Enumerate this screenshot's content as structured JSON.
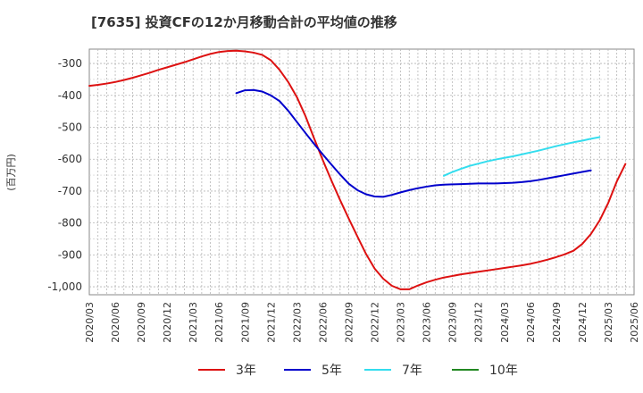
{
  "chart_data": {
    "type": "line",
    "title": "[7635]  投資CFの12か月移動合計の平均値の推移",
    "ylabel": "(百万円)",
    "xlabel": "",
    "ylim": [
      -1025,
      -255
    ],
    "yticks": [
      -300,
      -400,
      -500,
      -600,
      -700,
      -800,
      -900,
      -1000
    ],
    "ytick_labels": [
      "-300",
      "-400",
      "-500",
      "-600",
      "-700",
      "-800",
      "-900",
      "-1,000"
    ],
    "xticks": [
      "2020/03",
      "2020/06",
      "2020/09",
      "2020/12",
      "2021/03",
      "2021/06",
      "2021/09",
      "2021/12",
      "2022/03",
      "2022/06",
      "2022/09",
      "2022/12",
      "2023/03",
      "2023/06",
      "2023/09",
      "2023/12",
      "2024/03",
      "2024/06",
      "2024/09",
      "2024/12",
      "2025/03",
      "2025/06"
    ],
    "grid": true,
    "legend_position": "bottom",
    "series": [
      {
        "name": "3年",
        "color": "#dd1111",
        "start": "2020/03",
        "values": [
          -370,
          -367,
          -363,
          -358,
          -352,
          -345,
          -337,
          -329,
          -320,
          -312,
          -304,
          -296,
          -287,
          -278,
          -270,
          -264,
          -261,
          -260,
          -262,
          -266,
          -273,
          -290,
          -320,
          -358,
          -405,
          -465,
          -535,
          -603,
          -667,
          -728,
          -786,
          -842,
          -897,
          -943,
          -975,
          -997,
          -1008,
          -1008,
          -996,
          -986,
          -978,
          -971,
          -966,
          -961,
          -957,
          -953,
          -949,
          -945,
          -941,
          -937,
          -933,
          -928,
          -922,
          -915,
          -907,
          -898,
          -887,
          -866,
          -835,
          -793,
          -738,
          -670,
          -615
        ]
      },
      {
        "name": "5年",
        "color": "#0000cc",
        "start": "2021/08",
        "values": [
          -393,
          -384,
          -383,
          -388,
          -400,
          -418,
          -448,
          -483,
          -518,
          -552,
          -585,
          -617,
          -648,
          -677,
          -697,
          -710,
          -717,
          -718,
          -712,
          -704,
          -697,
          -691,
          -686,
          -682,
          -680,
          -679,
          -678,
          -677,
          -676,
          -676,
          -676,
          -675,
          -674,
          -672,
          -669,
          -665,
          -660,
          -655,
          -650,
          -645,
          -640,
          -635
        ]
      },
      {
        "name": "7年",
        "color": "#33ddee",
        "start": "2023/08",
        "values": [
          -652,
          -640,
          -630,
          -621,
          -614,
          -607,
          -601,
          -596,
          -591,
          -585,
          -579,
          -573,
          -566,
          -559,
          -553,
          -547,
          -542,
          -536,
          -531
        ]
      },
      {
        "name": "10年",
        "color": "#228822",
        "start": "",
        "values": []
      }
    ]
  }
}
